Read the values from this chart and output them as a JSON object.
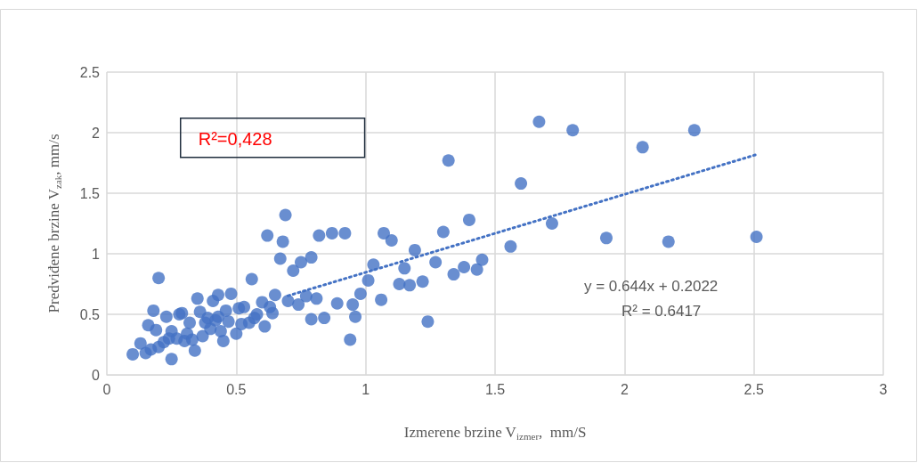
{
  "chart_data": {
    "type": "scatter",
    "xlabel": "Izmerene brzine V$_{izmer}$,  mm/S",
    "ylabel": "Predviđene brzine V$_{zak}$, mm/s",
    "xlim": [
      0,
      3
    ],
    "xticks": [
      0,
      0.5,
      1,
      1.5,
      2,
      2.5,
      3
    ],
    "ylim": [
      0,
      2.5
    ],
    "yticks": [
      0,
      0.5,
      1,
      1.5,
      2,
      2.5
    ],
    "grid": true,
    "marker": "circle",
    "annotations": [
      "R²=0,428",
      "y = 0.644x + 0.2022",
      "R² = 0.6417"
    ],
    "series": [
      {
        "color": "#4472c4",
        "x": [
          1.67,
          1.8,
          2.07,
          2.27,
          1.32,
          1.6,
          1.72,
          1.4,
          1.93,
          2.17,
          2.51,
          1.56,
          1.45,
          1.43,
          1.38,
          1.34,
          1.3,
          1.27,
          1.22,
          1.24,
          1.19,
          1.17,
          1.15,
          1.13,
          1.1,
          1.07,
          1.06,
          1.03,
          1.01,
          0.98,
          0.96,
          0.95,
          0.94,
          0.92,
          0.87,
          0.82,
          0.79,
          0.75,
          0.72,
          0.69,
          0.68,
          0.67,
          0.62,
          0.74,
          0.7,
          0.77,
          0.81,
          0.79,
          0.84,
          0.89,
          0.2,
          0.18,
          0.1,
          0.13,
          0.15,
          0.16,
          0.19,
          0.17,
          0.2,
          0.22,
          0.23,
          0.25,
          0.25,
          0.27,
          0.28,
          0.29,
          0.3,
          0.31,
          0.33,
          0.34,
          0.35,
          0.36,
          0.37,
          0.38,
          0.39,
          0.4,
          0.41,
          0.42,
          0.43,
          0.44,
          0.45,
          0.46,
          0.47,
          0.48,
          0.5,
          0.51,
          0.52,
          0.53,
          0.55,
          0.56,
          0.57,
          0.58,
          0.6,
          0.61,
          0.63,
          0.64,
          0.65,
          0.24,
          0.32,
          0.43
        ],
        "values": [
          2.09,
          2.02,
          1.88,
          2.02,
          1.77,
          1.58,
          1.25,
          1.28,
          1.13,
          1.1,
          1.14,
          1.06,
          0.95,
          0.87,
          0.89,
          0.83,
          1.18,
          0.93,
          0.77,
          0.44,
          1.03,
          0.74,
          0.88,
          0.75,
          1.11,
          1.17,
          0.62,
          0.91,
          0.78,
          0.67,
          0.48,
          0.58,
          0.29,
          1.17,
          1.17,
          1.15,
          0.97,
          0.93,
          0.86,
          1.32,
          1.1,
          0.96,
          1.15,
          0.58,
          0.61,
          0.65,
          0.63,
          0.46,
          0.47,
          0.59,
          0.8,
          0.53,
          0.17,
          0.26,
          0.18,
          0.41,
          0.37,
          0.21,
          0.23,
          0.27,
          0.48,
          0.13,
          0.36,
          0.3,
          0.5,
          0.51,
          0.28,
          0.34,
          0.29,
          0.2,
          0.63,
          0.52,
          0.32,
          0.43,
          0.47,
          0.38,
          0.61,
          0.45,
          0.66,
          0.36,
          0.28,
          0.53,
          0.44,
          0.67,
          0.34,
          0.55,
          0.42,
          0.56,
          0.43,
          0.79,
          0.47,
          0.5,
          0.6,
          0.4,
          0.56,
          0.51,
          0.66,
          0.3,
          0.43,
          0.48
        ]
      },
      {
        "type": "line",
        "color": "#4472c4",
        "line_style": "dotted",
        "marker": "none",
        "x": [
          0.7,
          2.51
        ],
        "values": [
          0.653,
          1.819
        ]
      }
    ]
  }
}
